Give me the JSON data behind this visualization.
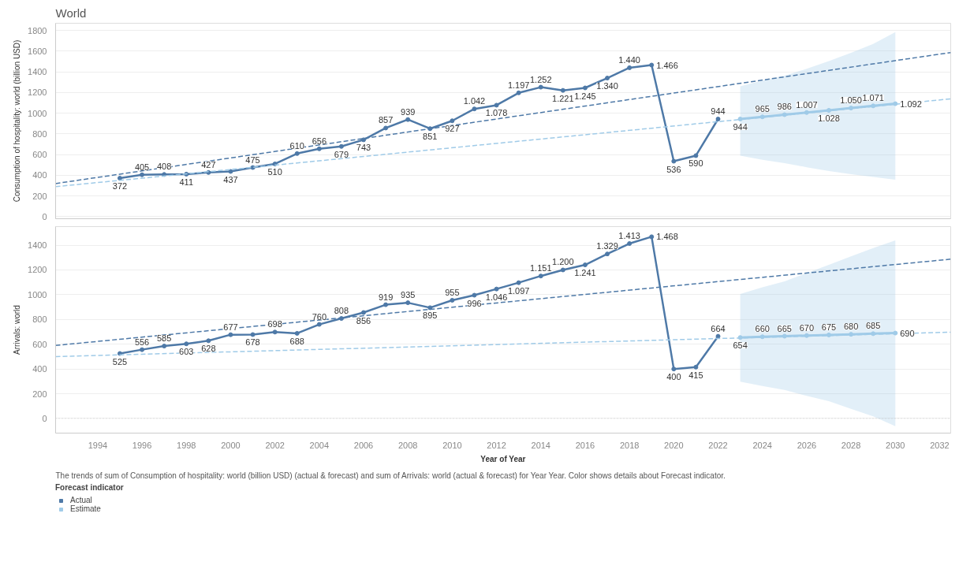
{
  "chart_data": [
    {
      "type": "line",
      "title": "World",
      "ylabel": "Consumption of hospitality: world (billion USD)",
      "xlim": [
        1992.1,
        2032.5
      ],
      "xticks": [
        1994,
        1996,
        1998,
        2000,
        2002,
        2004,
        2006,
        2008,
        2010,
        2012,
        2014,
        2016,
        2018,
        2020,
        2022,
        2024,
        2026,
        2028,
        2030,
        2032
      ],
      "ylim": [
        -20,
        1870
      ],
      "yticks": [
        0,
        200,
        400,
        600,
        800,
        1000,
        1200,
        1400,
        1600,
        1800
      ],
      "tick_labels": "y",
      "grid": "y",
      "legend": false,
      "marker": "circle",
      "series": [
        {
          "color": "#4e79a7",
          "x": [
            1995,
            1996,
            1997,
            1998,
            1999,
            2000,
            2001,
            2002,
            2003,
            2004,
            2005,
            2006,
            2007,
            2008,
            2009,
            2010,
            2011,
            2012,
            2013,
            2014,
            2015,
            2016,
            2017,
            2018,
            2019,
            2020,
            2021,
            2022
          ],
          "values": [
            372,
            405,
            408,
            411,
            427,
            437,
            475,
            510,
            610,
            656,
            679,
            743,
            857,
            939,
            851,
            927,
            1042,
            1078,
            1197,
            1252,
            1221,
            1245,
            1340,
            1440,
            1466,
            536,
            590,
            944
          ],
          "value_labels": [
            "372",
            "405",
            "408",
            "411",
            "427",
            "437",
            "475",
            "510",
            "610",
            "656",
            "679",
            "743",
            "857",
            "939",
            "851",
            "927",
            "1.042",
            "1.078",
            "1.197",
            "1.252",
            "1.221",
            "1.245",
            "1.340",
            "1.440",
            "1.466",
            "536",
            "590",
            "944"
          ]
        },
        {
          "color": "#a0cbe8",
          "x": [
            2023,
            2024,
            2025,
            2026,
            2027,
            2028,
            2029,
            2030
          ],
          "values": [
            944,
            965,
            986,
            1007,
            1028,
            1050,
            1071,
            1092
          ],
          "value_labels": [
            "944",
            "965",
            "986",
            "1.007",
            "1.028",
            "1.050",
            "1.071",
            "1.092"
          ],
          "lower": [
            589,
            550,
            518,
            478,
            441,
            410,
            384,
            358
          ],
          "upper": [
            1260,
            1315,
            1363,
            1430,
            1505,
            1585,
            1670,
            1785
          ]
        },
        {
          "type": "line",
          "line_style": "dashed",
          "marker": "none",
          "color": "#4e79a7",
          "x": [
            1992.1,
            2032.5
          ],
          "values": [
            320,
            1587
          ]
        },
        {
          "type": "line",
          "line_style": "dashed",
          "marker": "none",
          "color": "#a0cbe8",
          "x": [
            1992.1,
            2032.5
          ],
          "values": [
            290,
            1139
          ]
        }
      ]
    },
    {
      "type": "line",
      "ylabel": "Arrivals: world",
      "xlabel": "Year of Year",
      "legend_title": "Forecast indicator",
      "legend": "bottom",
      "xlim": [
        1992.1,
        2032.5
      ],
      "xticks": [
        1994,
        1996,
        1998,
        2000,
        2002,
        2004,
        2006,
        2008,
        2010,
        2012,
        2014,
        2016,
        2018,
        2020,
        2022,
        2024,
        2026,
        2028,
        2030,
        2032
      ],
      "ylim": [
        -118,
        1550
      ],
      "yticks": [
        0,
        200,
        400,
        600,
        800,
        1000,
        1200,
        1400
      ],
      "grid": "y",
      "marker": "circle",
      "ref_lines": [
        {
          "axis": "y",
          "value": 0,
          "line_style": "dotted",
          "color": "#cccccc"
        }
      ],
      "annotations": [
        "The trends of sum of Consumption of  hospitality: world (billion USD) (actual & forecast)  and sum of Arrivals: world (actual & forecast)  for Year Year.  Color shows details about Forecast indicator."
      ],
      "series": [
        {
          "name": "Actual",
          "color": "#4e79a7",
          "x": [
            1995,
            1996,
            1997,
            1998,
            1999,
            2000,
            2001,
            2002,
            2003,
            2004,
            2005,
            2006,
            2007,
            2008,
            2009,
            2010,
            2011,
            2012,
            2013,
            2014,
            2015,
            2016,
            2017,
            2018,
            2019,
            2020,
            2021,
            2022
          ],
          "values": [
            525,
            556,
            585,
            603,
            628,
            677,
            678,
            698,
            688,
            760,
            808,
            856,
            919,
            935,
            895,
            955,
            996,
            1046,
            1097,
            1151,
            1200,
            1241,
            1329,
            1413,
            1468,
            400,
            415,
            664
          ],
          "value_labels": [
            "525",
            "556",
            "585",
            "603",
            "628",
            "677",
            "678",
            "698",
            "688",
            "760",
            "808",
            "856",
            "919",
            "935",
            "895",
            "955",
            "996",
            "1.046",
            "1.097",
            "1.151",
            "1.200",
            "1.241",
            "1.329",
            "1.413",
            "1.468",
            "400",
            "415",
            "664"
          ]
        },
        {
          "name": "Estimate",
          "color": "#a0cbe8",
          "x": [
            2023,
            2024,
            2025,
            2026,
            2027,
            2028,
            2029,
            2030
          ],
          "values": [
            654,
            660,
            665,
            670,
            675,
            680,
            685,
            690
          ],
          "value_labels": [
            "654",
            "660",
            "665",
            "670",
            "675",
            "680",
            "685",
            "690"
          ],
          "lower": [
            298,
            262,
            230,
            183,
            140,
            77,
            17,
            -62
          ],
          "upper": [
            1006,
            1060,
            1107,
            1175,
            1242,
            1310,
            1376,
            1438
          ]
        },
        {
          "type": "line",
          "line_style": "dashed",
          "marker": "none",
          "color": "#4e79a7",
          "x": [
            1992.1,
            2032.5
          ],
          "values": [
            590,
            1287
          ]
        },
        {
          "type": "line",
          "line_style": "dashed",
          "marker": "none",
          "color": "#a0cbe8",
          "x": [
            1992.1,
            2032.5
          ],
          "values": [
            500,
            697
          ]
        }
      ]
    }
  ]
}
